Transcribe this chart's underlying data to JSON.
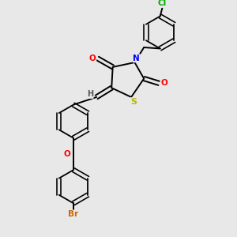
{
  "bg_color": "#e8e8e8",
  "bond_color": "#000000",
  "atom_colors": {
    "O": "#ff0000",
    "N": "#0000ff",
    "S": "#b8b800",
    "Br": "#cc6600",
    "Cl": "#00aa00",
    "H": "#555555",
    "C": "#000000"
  },
  "fig_width": 3.0,
  "fig_height": 3.0,
  "dpi": 100,
  "lw": 1.4,
  "ring_lw": 1.3,
  "font_size": 7.5
}
